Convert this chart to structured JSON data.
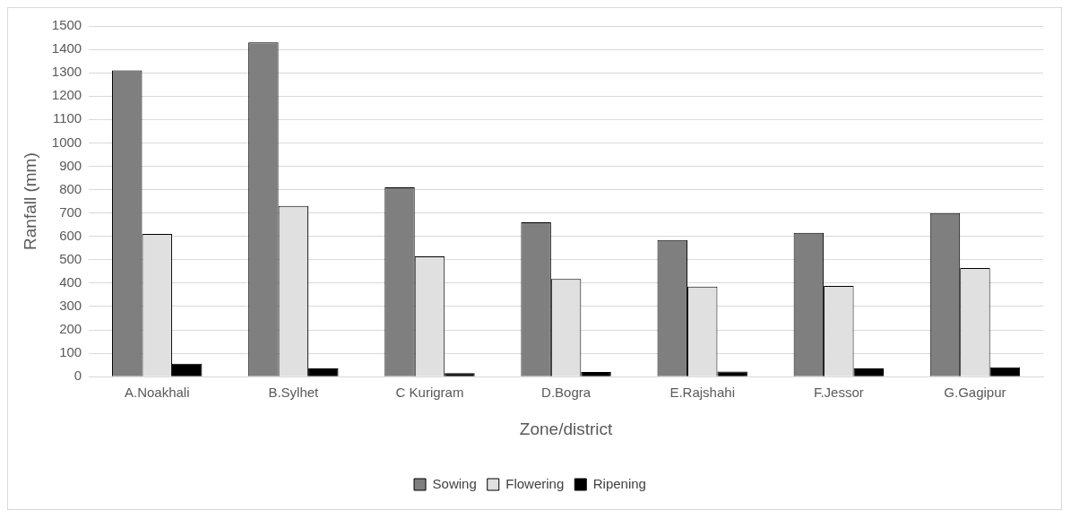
{
  "chart_data": {
    "type": "bar",
    "xlabel": "Zone/district",
    "ylabel": "Ranfall (mm)",
    "categories": [
      "A.Noakhali",
      "B.Sylhet",
      "C Kurigram",
      "D.Bogra",
      "E.Rajshahi",
      "F.Jessor",
      "G.Gagipur"
    ],
    "series": [
      {
        "name": "Sowing",
        "color": "#7f7f7f",
        "values": [
          1310,
          1430,
          810,
          660,
          585,
          615,
          700
        ]
      },
      {
        "name": "Flowering",
        "color": "#e0e0e0",
        "values": [
          610,
          730,
          515,
          418,
          385,
          388,
          465
        ]
      },
      {
        "name": "Ripening",
        "color": "#000000",
        "values": [
          55,
          35,
          15,
          20,
          22,
          35,
          40
        ]
      }
    ],
    "ylim": [
      0,
      1500
    ],
    "yticks": [
      0,
      100,
      200,
      300,
      400,
      500,
      600,
      700,
      800,
      900,
      1000,
      1100,
      1200,
      1300,
      1400,
      1500
    ],
    "grid": "y",
    "legend": "bottom"
  }
}
